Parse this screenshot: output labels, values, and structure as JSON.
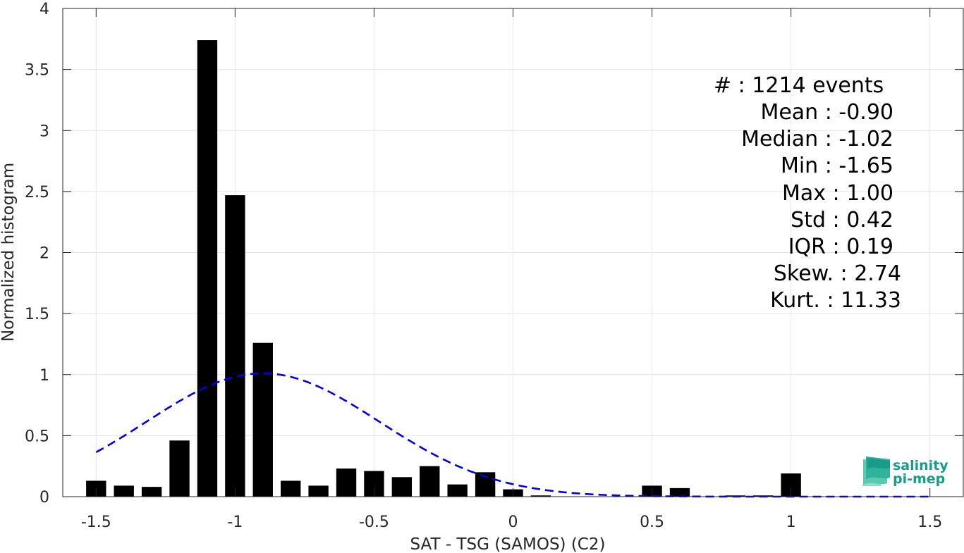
{
  "chart_data": {
    "type": "bar",
    "xlabel": "SAT - TSG (SAMOS) (C2)",
    "ylabel": "Normalized histogram",
    "xlim": [
      -1.62,
      1.62
    ],
    "ylim": [
      0,
      4
    ],
    "xticks": [
      -1.5,
      -1,
      -0.5,
      0,
      0.5,
      1,
      1.5
    ],
    "xtick_labels": [
      "-1.5",
      "-1",
      "-0.5",
      "0",
      "0.5",
      "1",
      "1.5"
    ],
    "yticks": [
      0,
      0.5,
      1,
      1.5,
      2,
      2.5,
      3,
      3.5,
      4
    ],
    "ytick_labels": [
      "0",
      "0.5",
      "1",
      "1.5",
      "2",
      "2.5",
      "3",
      "3.5",
      "4"
    ],
    "grid": true,
    "bar_color": "#000000",
    "bin_width": 0.1,
    "bars": [
      {
        "x": -1.5,
        "y": 0.13
      },
      {
        "x": -1.4,
        "y": 0.09
      },
      {
        "x": -1.3,
        "y": 0.08
      },
      {
        "x": -1.2,
        "y": 0.46
      },
      {
        "x": -1.1,
        "y": 3.74
      },
      {
        "x": -1.0,
        "y": 2.47
      },
      {
        "x": -0.9,
        "y": 1.26
      },
      {
        "x": -0.8,
        "y": 0.13
      },
      {
        "x": -0.7,
        "y": 0.09
      },
      {
        "x": -0.6,
        "y": 0.23
      },
      {
        "x": -0.5,
        "y": 0.21
      },
      {
        "x": -0.4,
        "y": 0.16
      },
      {
        "x": -0.3,
        "y": 0.25
      },
      {
        "x": -0.2,
        "y": 0.1
      },
      {
        "x": -0.1,
        "y": 0.2
      },
      {
        "x": 0.0,
        "y": 0.06
      },
      {
        "x": 0.1,
        "y": 0.01
      },
      {
        "x": 0.5,
        "y": 0.09
      },
      {
        "x": 0.6,
        "y": 0.07
      },
      {
        "x": 0.8,
        "y": 0.01
      },
      {
        "x": 0.9,
        "y": 0.01
      },
      {
        "x": 1.0,
        "y": 0.19
      }
    ],
    "fit_curve": {
      "style": "dashed",
      "color": "#0000ee",
      "x_range": [
        -1.5,
        1.5
      ],
      "mean": -0.9,
      "std": 0.42,
      "peak": 1.01
    },
    "annotations": [
      {
        "label": "#  : 1214 events"
      },
      {
        "label": "Mean : -0.90"
      },
      {
        "label": "Median : -1.02"
      },
      {
        "label": "Min : -1.65"
      },
      {
        "label": "Max : 1.00"
      },
      {
        "label": "Std : 0.42"
      },
      {
        "label": "IQR : 0.19"
      },
      {
        "label": "Skew. : 2.74"
      },
      {
        "label": "Kurt. : 11.33"
      }
    ]
  },
  "logo": {
    "line1": "salinity",
    "line2": "pi-mep",
    "color": "#1a9c8a"
  }
}
